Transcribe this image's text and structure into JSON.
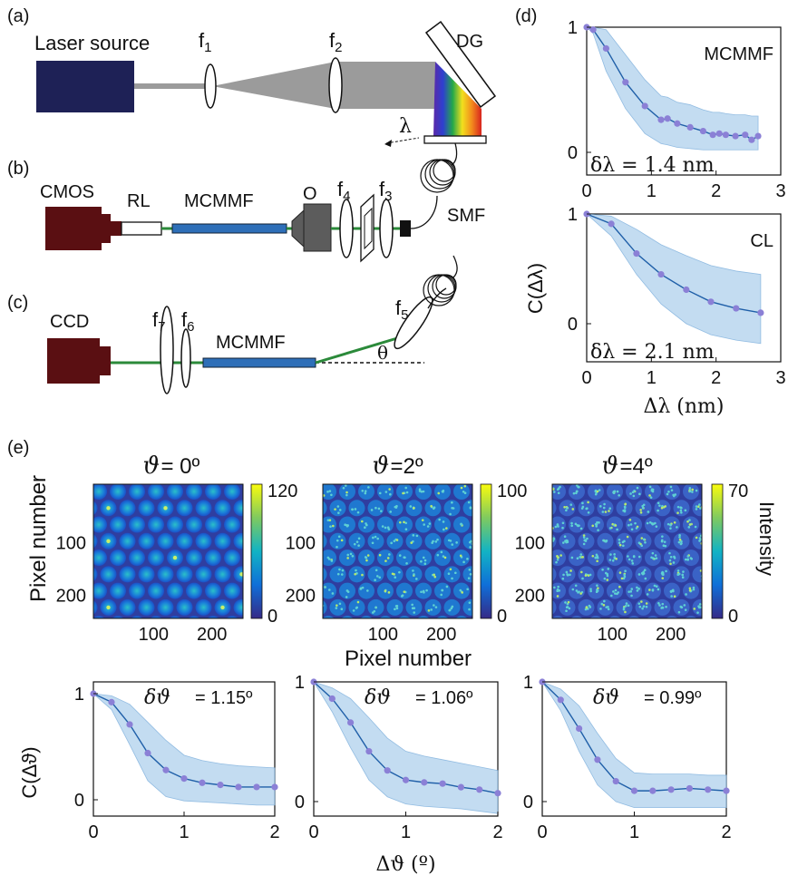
{
  "labels": {
    "a": "(a)",
    "b": "(b)",
    "c": "(c)",
    "d": "(d)",
    "e": "(e)"
  },
  "setup_a": {
    "laser": "Laser source",
    "f1": "f",
    "f1_sub": "1",
    "f2": "f",
    "f2_sub": "2",
    "dg": "DG",
    "lambda": "λ"
  },
  "setup_b": {
    "cmos": "CMOS",
    "rl": "RL",
    "mcmmf": "MCMMF",
    "o": "O",
    "f4": "f",
    "f4_sub": "4",
    "f3": "f",
    "f3_sub": "3",
    "smf": "SMF"
  },
  "setup_c": {
    "ccd": "CCD",
    "f7": "f",
    "f7_sub": "7",
    "f6": "f",
    "f6_sub": "6",
    "mcmmf": "MCMMF",
    "f5": "f",
    "f5_sub": "5",
    "theta": "θ"
  },
  "colors": {
    "laser": "#1e2156",
    "camera": "#5a0f12",
    "fiber": "#2e6fb8",
    "beam_green": "#2b8a3a",
    "band": "#b9d6ef",
    "line": "#1f5fa8",
    "marker": "#8b80d6"
  },
  "chart_data": [
    {
      "id": "d_top",
      "type": "line",
      "label": "MCMMF",
      "ylabel": "C(Δλ)",
      "ylim": [
        0,
        1
      ],
      "xlim": [
        0,
        3
      ],
      "xticks": [
        "0",
        "1",
        "2",
        "3"
      ],
      "yticks": [
        "0",
        "1"
      ],
      "annotation": "δλ = 1.4 nm",
      "x": [
        0,
        0.1,
        0.3,
        0.6,
        0.9,
        1.15,
        1.25,
        1.4,
        1.6,
        1.8,
        1.95,
        2.05,
        2.15,
        2.3,
        2.45,
        2.55,
        2.65
      ],
      "y": [
        1.0,
        0.98,
        0.83,
        0.56,
        0.37,
        0.26,
        0.27,
        0.23,
        0.2,
        0.17,
        0.14,
        0.15,
        0.14,
        0.13,
        0.14,
        0.1,
        0.13
      ],
      "lower": [
        1.0,
        0.95,
        0.65,
        0.35,
        0.15,
        0.07,
        0.06,
        0.04,
        0.03,
        0.02,
        0.02,
        0.02,
        0.02,
        0.02,
        0.02,
        0.02,
        0.02
      ],
      "upper": [
        1.0,
        1.0,
        0.98,
        0.78,
        0.58,
        0.45,
        0.44,
        0.4,
        0.38,
        0.34,
        0.32,
        0.32,
        0.31,
        0.3,
        0.3,
        0.29,
        0.29
      ]
    },
    {
      "id": "d_bot",
      "type": "line",
      "label": "CL",
      "ylim": [
        0,
        1
      ],
      "xlim": [
        0,
        3
      ],
      "xticks": [
        "0",
        "1",
        "2",
        "3"
      ],
      "yticks": [
        "0",
        "1"
      ],
      "xlabel": "Δλ (nm)",
      "annotation": "δλ = 2.1 nm",
      "x": [
        0,
        0.38,
        0.77,
        1.15,
        1.54,
        1.92,
        2.31,
        2.69
      ],
      "y": [
        1.0,
        0.91,
        0.64,
        0.45,
        0.31,
        0.2,
        0.14,
        0.1
      ],
      "lower": [
        1.0,
        0.8,
        0.45,
        0.18,
        0.0,
        -0.1,
        -0.15,
        -0.18
      ],
      "upper": [
        1.0,
        0.98,
        0.86,
        0.72,
        0.62,
        0.53,
        0.48,
        0.45
      ]
    },
    {
      "id": "e1",
      "type": "line",
      "ylabel": "C(Δϑ)",
      "ylim": [
        0,
        1
      ],
      "xlim": [
        0,
        2
      ],
      "xticks": [
        "0",
        "1",
        "2"
      ],
      "yticks": [
        "0",
        "1"
      ],
      "annotation": "δϑ",
      "annotation_value": "= 1.15º",
      "x": [
        0,
        0.2,
        0.4,
        0.6,
        0.8,
        1.0,
        1.2,
        1.4,
        1.6,
        1.8,
        2.0
      ],
      "y": [
        1.0,
        0.92,
        0.71,
        0.44,
        0.28,
        0.2,
        0.16,
        0.14,
        0.12,
        0.12,
        0.12
      ],
      "lower": [
        1.0,
        0.85,
        0.52,
        0.18,
        0.03,
        -0.01,
        -0.02,
        -0.03,
        -0.04,
        -0.05,
        -0.05
      ],
      "upper": [
        1.0,
        0.98,
        0.9,
        0.73,
        0.56,
        0.42,
        0.37,
        0.34,
        0.32,
        0.31,
        0.3
      ]
    },
    {
      "id": "e2",
      "type": "line",
      "ylim": [
        0,
        1
      ],
      "xlim": [
        0,
        2
      ],
      "xticks": [
        "0",
        "1",
        "2"
      ],
      "yticks": [
        "0",
        "1"
      ],
      "xlabel": "Δϑ (º)",
      "annotation": "δϑ",
      "annotation_value": "= 1.06º",
      "x": [
        0,
        0.2,
        0.4,
        0.6,
        0.8,
        1.0,
        1.2,
        1.4,
        1.6,
        1.8,
        2.0
      ],
      "y": [
        1.0,
        0.86,
        0.66,
        0.42,
        0.26,
        0.18,
        0.16,
        0.15,
        0.12,
        0.1,
        0.07
      ],
      "lower": [
        1.0,
        0.75,
        0.45,
        0.18,
        0.04,
        -0.02,
        -0.04,
        -0.05,
        -0.06,
        -0.08,
        -0.1
      ],
      "upper": [
        1.0,
        0.95,
        0.86,
        0.7,
        0.53,
        0.42,
        0.38,
        0.35,
        0.32,
        0.29,
        0.26
      ]
    },
    {
      "id": "e3",
      "type": "line",
      "ylim": [
        0,
        1
      ],
      "xlim": [
        0,
        2
      ],
      "xticks": [
        "0",
        "1",
        "2"
      ],
      "yticks": [
        "0",
        "1"
      ],
      "annotation": "δϑ",
      "annotation_value": "= 0.99º",
      "x": [
        0,
        0.2,
        0.4,
        0.6,
        0.8,
        1.0,
        1.2,
        1.4,
        1.6,
        1.8,
        2.0
      ],
      "y": [
        1.0,
        0.85,
        0.61,
        0.35,
        0.17,
        0.09,
        0.09,
        0.1,
        0.11,
        0.1,
        0.09
      ],
      "lower": [
        1.0,
        0.76,
        0.42,
        0.14,
        0.0,
        -0.05,
        -0.05,
        -0.05,
        -0.05,
        -0.05,
        -0.05
      ],
      "upper": [
        1.0,
        0.94,
        0.8,
        0.57,
        0.36,
        0.24,
        0.23,
        0.23,
        0.23,
        0.22,
        0.22
      ]
    }
  ],
  "images": [
    {
      "id": "img1",
      "title_sym": "ϑ",
      "title_val": "= 0º",
      "cb_max": "120",
      "cb_min": "0",
      "xticks": [
        "100",
        "200"
      ],
      "yticks": [
        "100",
        "200"
      ],
      "density": "low"
    },
    {
      "id": "img2",
      "title_sym": "ϑ",
      "title_val": "=2º",
      "cb_max": "100",
      "cb_min": "0",
      "xticks": [
        "100",
        "200"
      ],
      "yticks": [
        "100",
        "200"
      ],
      "density": "mid"
    },
    {
      "id": "img3",
      "title_sym": "ϑ",
      "title_val": "=4º",
      "cb_max": "70",
      "cb_min": "0",
      "xticks": [
        "100",
        "200"
      ],
      "yticks": [
        "100",
        "200"
      ],
      "density": "high"
    }
  ],
  "image_axes": {
    "ylabel": "Pixel number",
    "xlabel": "Pixel number",
    "cb_label": "Intensity"
  }
}
